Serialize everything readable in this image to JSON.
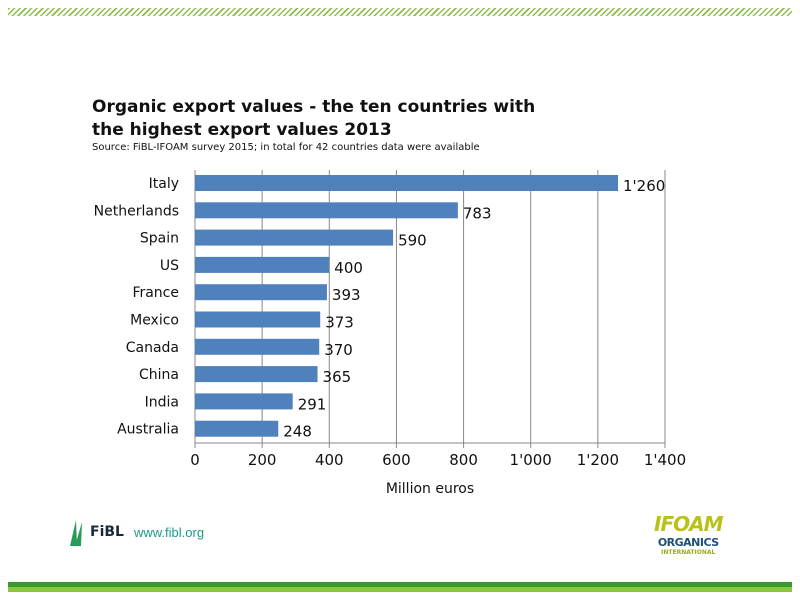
{
  "header": {
    "title": "Organic export values - the ten countries with the highest export values 2013",
    "source": "Source: FiBL-IFOAM survey 2015; in total for 42 countries data were available"
  },
  "footer": {
    "fibl_logo": "FiBL",
    "fibl_url": "www.fibl.org",
    "ifoam_logo": "IFOAM ORGANICS INTERNATIONAL",
    "ifoam_line1": "IFOAM",
    "ifoam_line2": "ORGANICS",
    "ifoam_line3": "INTERNATIONAL"
  },
  "colors": {
    "bar": "#4f81bd",
    "accent_dark": "#3a9a2e",
    "accent_light": "#8cc63e"
  },
  "chart_data": {
    "type": "bar",
    "orientation": "horizontal",
    "categories": [
      "Italy",
      "Netherlands",
      "Spain",
      "US",
      "France",
      "Mexico",
      "Canada",
      "China",
      "India",
      "Australia"
    ],
    "values": [
      1260,
      783,
      590,
      400,
      393,
      373,
      370,
      365,
      291,
      248
    ],
    "value_labels": [
      "1'260",
      "783",
      "590",
      "400",
      "393",
      "373",
      "370",
      "365",
      "291",
      "248"
    ],
    "xlabel": "Million euros",
    "xlim": [
      0,
      1400
    ],
    "xticks": [
      0,
      200,
      400,
      600,
      800,
      1000,
      1200,
      1400
    ],
    "xtick_labels": [
      "0",
      "200",
      "400",
      "600",
      "800",
      "1'000",
      "1'200",
      "1'400"
    ],
    "grid": true
  }
}
